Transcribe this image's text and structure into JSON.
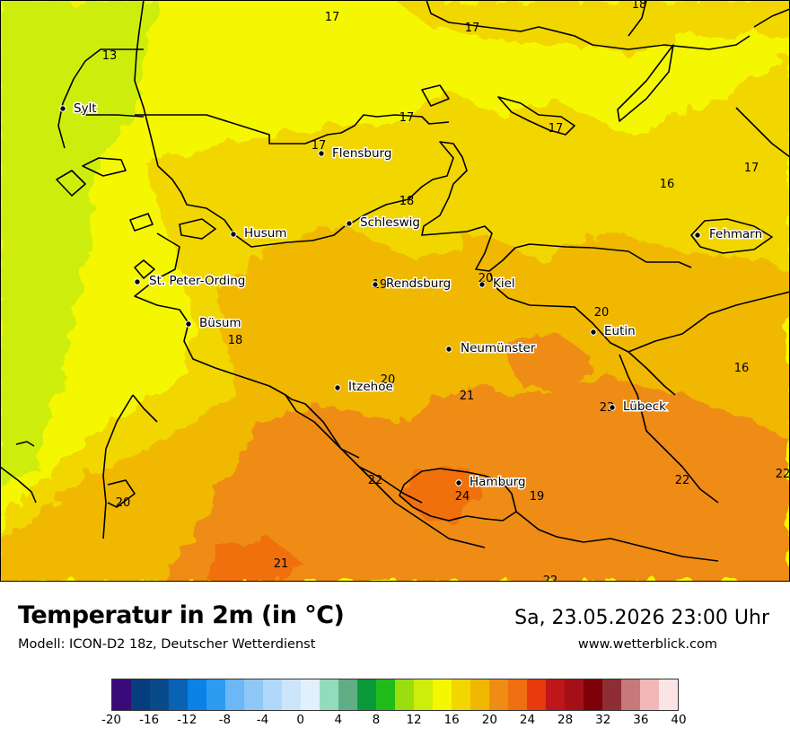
{
  "title": "Temperatur in 2m (in °C)",
  "subtitle": "Modell: ICON-D2 18z, Deutscher Wetterdienst",
  "datetime": "Sa, 23.05.2026 23:00 Uhr",
  "website": "www.wetterblick.com",
  "cities": [
    {
      "name": "Sylt"
    },
    {
      "name": "Flensburg"
    },
    {
      "name": "Schleswig"
    },
    {
      "name": "Husum"
    },
    {
      "name": "Fehmarn"
    },
    {
      "name": "St. Peter-Ording"
    },
    {
      "name": "Rendsburg"
    },
    {
      "name": "Kiel"
    },
    {
      "name": "Eutin"
    },
    {
      "name": "Büsum"
    },
    {
      "name": "Neumünster"
    },
    {
      "name": "Itzehoe"
    },
    {
      "name": "Lübeck"
    },
    {
      "name": "Hamburg"
    }
  ],
  "temperature_labels": [
    "17",
    "17",
    "18",
    "13",
    "17",
    "17",
    "17",
    "16",
    "17",
    "18",
    "19",
    "20",
    "20",
    "18",
    "20",
    "16",
    "21",
    "23",
    "22",
    "22",
    "22",
    "24",
    "19",
    "20",
    "21",
    "22"
  ],
  "legend": {
    "colors": [
      "#3a0a7a",
      "#063d7f",
      "#084a8a",
      "#0a62b5",
      "#0a82e6",
      "#2b9cf2",
      "#6cb7f5",
      "#8ec8f7",
      "#b0d8fa",
      "#cde5fb",
      "#e2effd",
      "#93dbbd",
      "#5fae85",
      "#0b9a3a",
      "#22bc1a",
      "#9ade0e",
      "#cdee0a",
      "#f4f700",
      "#f2d600",
      "#f0b800",
      "#ef8c14",
      "#f06f10",
      "#e83a0d",
      "#c0161a",
      "#a51018",
      "#7e0008",
      "#8e2e34",
      "#c77878",
      "#f2b8b8",
      "#fde4e4"
    ],
    "ticks": [
      "-20",
      "-16",
      "-12",
      "-8",
      "-4",
      "0",
      "4",
      "8",
      "12",
      "16",
      "20",
      "24",
      "28",
      "32",
      "36",
      "40"
    ]
  }
}
